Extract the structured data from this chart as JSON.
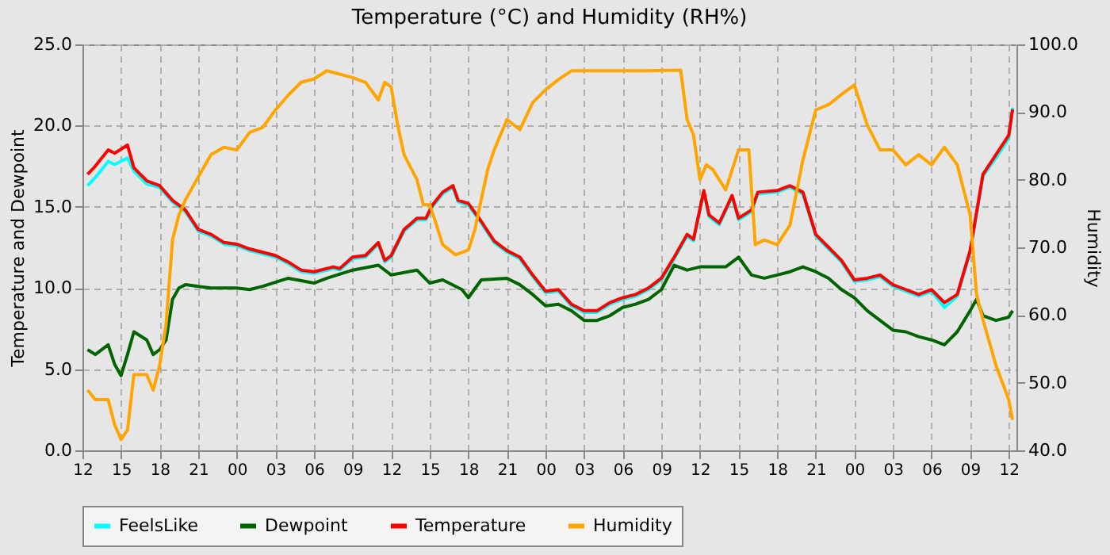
{
  "chart_data": {
    "type": "line",
    "title": "Temperature (°C) and Humidity (RH%)",
    "ylabel": "Temperature and Dewpoint",
    "y2label": "Humidity",
    "xlim": [
      12,
      84.6
    ],
    "xticks": [
      {
        "value": 12,
        "label": "12"
      },
      {
        "value": 15,
        "label": "15"
      },
      {
        "value": 18,
        "label": "18"
      },
      {
        "value": 21,
        "label": "21"
      },
      {
        "value": 24,
        "label": "00"
      },
      {
        "value": 27,
        "label": "03"
      },
      {
        "value": 30,
        "label": "06"
      },
      {
        "value": 33,
        "label": "09"
      },
      {
        "value": 36,
        "label": "12"
      },
      {
        "value": 39,
        "label": "15"
      },
      {
        "value": 42,
        "label": "18"
      },
      {
        "value": 45,
        "label": "21"
      },
      {
        "value": 48,
        "label": "00"
      },
      {
        "value": 51,
        "label": "03"
      },
      {
        "value": 54,
        "label": "06"
      },
      {
        "value": 57,
        "label": "09"
      },
      {
        "value": 60,
        "label": "12"
      },
      {
        "value": 63,
        "label": "15"
      },
      {
        "value": 66,
        "label": "18"
      },
      {
        "value": 69,
        "label": "21"
      },
      {
        "value": 72,
        "label": "00"
      },
      {
        "value": 75,
        "label": "03"
      },
      {
        "value": 78,
        "label": "06"
      },
      {
        "value": 81,
        "label": "09"
      },
      {
        "value": 84,
        "label": "12"
      }
    ],
    "ylim": [
      0,
      25
    ],
    "yticks": [
      {
        "value": 0,
        "label": "0.0"
      },
      {
        "value": 5,
        "label": "5.0"
      },
      {
        "value": 10,
        "label": "10.0"
      },
      {
        "value": 15,
        "label": "15.0"
      },
      {
        "value": 20,
        "label": "20.0"
      },
      {
        "value": 25,
        "label": "25.0"
      }
    ],
    "y2lim": [
      40,
      100
    ],
    "y2ticks": [
      {
        "value": 40,
        "label": "40.0"
      },
      {
        "value": 50,
        "label": "50.0"
      },
      {
        "value": 60,
        "label": "60.0"
      },
      {
        "value": 70,
        "label": "70.0"
      },
      {
        "value": 80,
        "label": "80.0"
      },
      {
        "value": 90,
        "label": "90.0"
      },
      {
        "value": 100,
        "label": "100.0"
      }
    ],
    "grid": true,
    "legend": "bottom",
    "marker": "none",
    "line_style": "solid",
    "series": [
      {
        "name": "FeelsLike",
        "color": "#00ffff",
        "x": [
          12.4,
          13,
          14,
          14.5,
          15.5,
          16,
          17,
          18,
          19,
          20,
          21,
          22,
          23,
          24,
          25,
          27,
          28,
          29,
          30,
          31.5,
          32,
          33,
          34,
          35,
          35.5,
          36,
          37,
          38,
          38.7,
          39.2,
          40,
          40.8,
          41.2,
          42,
          43,
          44,
          45,
          46,
          47,
          48,
          49,
          50,
          51,
          52,
          53,
          54,
          55,
          56,
          57,
          58,
          59,
          59.5,
          60.3,
          60.7,
          61.5,
          62.5,
          63,
          64,
          64.5,
          66,
          67,
          68,
          69,
          70,
          71,
          72,
          73,
          74,
          75,
          76,
          77,
          78,
          79,
          80,
          81,
          82,
          83,
          84,
          84.3
        ],
        "values": [
          16.3,
          16.8,
          17.8,
          17.6,
          18.0,
          17.2,
          16.4,
          16.2,
          15.3,
          14.7,
          13.5,
          13.2,
          12.7,
          12.6,
          12.3,
          11.9,
          11.5,
          11.0,
          10.9,
          11.2,
          11.1,
          11.8,
          11.9,
          12.7,
          11.6,
          11.9,
          13.5,
          14.2,
          14.2,
          15.0,
          15.8,
          16.2,
          15.3,
          15.1,
          14.0,
          12.8,
          12.2,
          11.8,
          10.7,
          9.7,
          9.8,
          8.9,
          8.5,
          8.5,
          9.0,
          9.3,
          9.5,
          9.9,
          10.5,
          11.8,
          13.2,
          12.9,
          15.9,
          14.4,
          13.9,
          15.6,
          14.2,
          14.7,
          15.8,
          15.9,
          16.2,
          15.8,
          13.2,
          12.4,
          11.6,
          10.4,
          10.5,
          10.7,
          10.1,
          9.8,
          9.5,
          9.8,
          8.8,
          9.5,
          12.2,
          16.9,
          18.0,
          19.2,
          21.1
        ]
      },
      {
        "name": "Dewpoint",
        "color": "#006400",
        "x": [
          12.4,
          13,
          14,
          14.5,
          15,
          15.5,
          16,
          17,
          17.5,
          18,
          18.5,
          19,
          19.5,
          20,
          22,
          24,
          25,
          26,
          28,
          30,
          31,
          33,
          35,
          36,
          38,
          39,
          40,
          41.5,
          42,
          43,
          45,
          46,
          47,
          48,
          49,
          50,
          51,
          52,
          53,
          54,
          55,
          56,
          57,
          58,
          59,
          60,
          61,
          62,
          63,
          64,
          65,
          66,
          67,
          68,
          69,
          70,
          71,
          72,
          73,
          74,
          75,
          76,
          77,
          78,
          79,
          80,
          81,
          81.5,
          82,
          83,
          84,
          84.3
        ],
        "values": [
          6.2,
          5.9,
          6.5,
          5.3,
          4.6,
          5.9,
          7.3,
          6.8,
          5.9,
          6.2,
          6.8,
          9.3,
          10.0,
          10.2,
          10.0,
          10.0,
          9.9,
          10.1,
          10.6,
          10.3,
          10.6,
          11.1,
          11.4,
          10.8,
          11.1,
          10.3,
          10.5,
          9.9,
          9.4,
          10.5,
          10.6,
          10.2,
          9.6,
          8.9,
          9.0,
          8.6,
          8.0,
          8.0,
          8.3,
          8.8,
          9.0,
          9.3,
          9.9,
          11.4,
          11.1,
          11.3,
          11.3,
          11.3,
          11.9,
          10.8,
          10.6,
          10.8,
          11.0,
          11.3,
          11.0,
          10.6,
          9.9,
          9.4,
          8.6,
          8.0,
          7.4,
          7.3,
          7.0,
          6.8,
          6.5,
          7.3,
          8.6,
          9.3,
          8.3,
          8.0,
          8.2,
          8.6
        ]
      },
      {
        "name": "Temperature",
        "color": "#ff0000",
        "x": [
          12.4,
          13,
          14,
          14.5,
          15.5,
          16,
          17,
          18,
          19,
          20,
          21,
          22,
          23,
          24,
          25,
          27,
          28,
          29,
          30,
          31.5,
          32,
          33,
          34,
          35,
          35.5,
          36,
          37,
          38,
          38.7,
          39.2,
          40,
          40.8,
          41.2,
          42,
          43,
          44,
          45,
          46,
          47,
          48,
          49,
          50,
          51,
          52,
          53,
          54,
          55,
          56,
          57,
          58,
          59,
          59.5,
          60.3,
          60.7,
          61.5,
          62.5,
          63,
          64,
          64.5,
          66,
          67,
          68,
          69,
          70,
          71,
          72,
          73,
          74,
          75,
          76,
          77,
          78,
          79,
          80,
          81,
          82,
          83,
          84,
          84.3
        ],
        "values": [
          17.0,
          17.5,
          18.5,
          18.3,
          18.8,
          17.4,
          16.6,
          16.3,
          15.4,
          14.8,
          13.6,
          13.3,
          12.8,
          12.7,
          12.4,
          12.0,
          11.6,
          11.1,
          11.0,
          11.3,
          11.2,
          11.9,
          12.0,
          12.8,
          11.7,
          12.0,
          13.6,
          14.3,
          14.3,
          15.1,
          15.9,
          16.3,
          15.4,
          15.2,
          14.1,
          12.9,
          12.3,
          11.9,
          10.8,
          9.8,
          9.9,
          9.0,
          8.6,
          8.6,
          9.1,
          9.4,
          9.6,
          10.0,
          10.6,
          11.9,
          13.3,
          13.0,
          16.0,
          14.5,
          14.0,
          15.7,
          14.3,
          14.8,
          15.9,
          16.0,
          16.3,
          15.9,
          13.3,
          12.5,
          11.7,
          10.5,
          10.6,
          10.8,
          10.2,
          9.9,
          9.6,
          9.9,
          9.1,
          9.6,
          12.3,
          17.0,
          18.2,
          19.4,
          21.0
        ]
      },
      {
        "name": "Humidity",
        "color": "#ffa500",
        "axis": "y2",
        "x": [
          12.4,
          13,
          14,
          14.5,
          15,
          15.5,
          16,
          17,
          17.5,
          18,
          18.5,
          19,
          19.5,
          20,
          21,
          22,
          23,
          24,
          25,
          26,
          27,
          28,
          29,
          30,
          31,
          33,
          34,
          35,
          35.5,
          36,
          36.5,
          37,
          38,
          38.5,
          39,
          39.5,
          40,
          41,
          42,
          42.5,
          43.5,
          44,
          45,
          46,
          47,
          48,
          49,
          50,
          53,
          56,
          58.5,
          59,
          59.5,
          60,
          60.5,
          61,
          62,
          63,
          63.8,
          64.3,
          65,
          66,
          67,
          68,
          69,
          70,
          71,
          72,
          73,
          74,
          75,
          76,
          77,
          78,
          79,
          80,
          81,
          81.5,
          82,
          83,
          84,
          84.3
        ],
        "values": [
          48.9,
          47.5,
          47.5,
          43.8,
          41.6,
          43.0,
          51.2,
          51.2,
          48.9,
          52.6,
          58.6,
          71.1,
          74.8,
          77.0,
          80.4,
          83.7,
          84.8,
          84.4,
          87.0,
          87.7,
          90.3,
          92.5,
          94.4,
          94.9,
          96.1,
          95.1,
          94.4,
          91.8,
          94.4,
          93.7,
          88.1,
          83.7,
          80.0,
          76.3,
          76.3,
          73.4,
          70.4,
          68.9,
          69.6,
          72.6,
          81.5,
          84.4,
          88.9,
          87.4,
          91.4,
          93.3,
          94.8,
          96.1,
          96.1,
          96.1,
          96.2,
          88.9,
          86.6,
          80.0,
          82.2,
          81.5,
          78.5,
          84.4,
          84.4,
          70.4,
          71.1,
          70.4,
          73.3,
          82.9,
          90.3,
          91.1,
          92.6,
          94.0,
          88.1,
          84.4,
          84.4,
          82.2,
          83.7,
          82.2,
          84.8,
          82.2,
          74.8,
          63.0,
          59.3,
          52.6,
          47.5,
          44.5
        ]
      }
    ]
  }
}
